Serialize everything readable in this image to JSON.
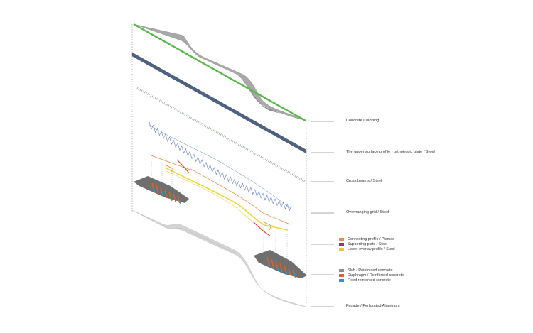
{
  "labels": {
    "concrete_cladding": "Concrete Cladding",
    "upper_surface": "The upper surface profile - orthotropic plate / Steel",
    "cross_beams": "Cross beams / Steel",
    "overhanging_grid": "Overhanging grid / Steel",
    "facade": "Facade / Perforated Aluminum"
  },
  "legend_steel": [
    {
      "label": "Connecting profile / Plemas",
      "color": "#f08a3c"
    },
    {
      "label": "Supporting plate / Steel",
      "color": "#7a3f86"
    },
    {
      "label": "Lower overlay profile / Steel",
      "color": "#f2c430"
    }
  ],
  "legend_concrete": [
    {
      "label": "Slab / Reinforced concrete",
      "color": "#8c8c8c"
    },
    {
      "label": "Diaphragm / Reinforced concrete",
      "color": "#d8642a"
    },
    {
      "label": "Fixed reinforced concrete",
      "color": "#3a8fd0"
    }
  ],
  "colors": {
    "cladding_green": "#5ab84b",
    "cladding_gray": "#a8a8a8",
    "deck_blue": "#4f6180",
    "cross_beam": "#9aa79a",
    "grid_blue": "#5e7fd0",
    "overlay_yellow": "#f2d23a",
    "connect_orange": "#ef7f3a",
    "support_red": "#d24a3c",
    "slab_gray": "#6f6f6f",
    "facade_gray": "#d4d4d4"
  }
}
